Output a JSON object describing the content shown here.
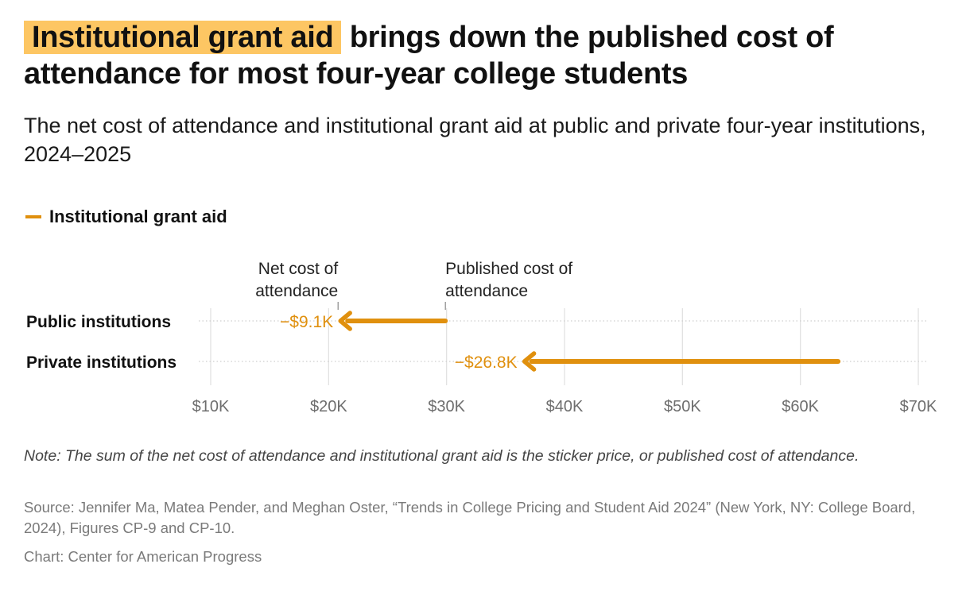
{
  "title": {
    "highlight": "Institutional grant aid",
    "rest": " brings down the published cost of attendance for most four-year college students"
  },
  "subtitle": "The net cost of attendance and institutional grant aid at public and private four-year institutions, 2024–2025",
  "legend": {
    "label": "Institutional grant aid",
    "color": "#e0900e"
  },
  "chart_data": {
    "type": "arrow",
    "categories": [
      "Public institutions",
      "Private institutions"
    ],
    "series": [
      {
        "name": "Published cost of attendance",
        "values": [
          29900,
          63200
        ]
      },
      {
        "name": "Net cost of attendance",
        "values": [
          20800,
          36400
        ]
      }
    ],
    "aid_labels": [
      "−$9.1K",
      "−$26.8K"
    ],
    "annotations": [
      "Net cost of attendance",
      "Published cost of attendance"
    ],
    "xlim": [
      10000,
      70000
    ],
    "x_ticks": [
      10000,
      20000,
      30000,
      40000,
      50000,
      60000,
      70000
    ],
    "x_tick_labels": [
      "$10K",
      "$20K",
      "$30K",
      "$40K",
      "$50K",
      "$60K",
      "$70K"
    ],
    "grid": true,
    "arrow_color": "#e0900e"
  },
  "note": "Note: The sum of the net cost of attendance and institutional grant aid is the sticker price, or published cost of attendance.",
  "source": "Source: Jennifer Ma, Matea Pender, and Meghan Oster, “Trends in College Pricing and Student Aid 2024” (New York, NY: College Board, 2024), Figures CP-9 and CP-10.",
  "credit": "Chart: Center for American Progress"
}
